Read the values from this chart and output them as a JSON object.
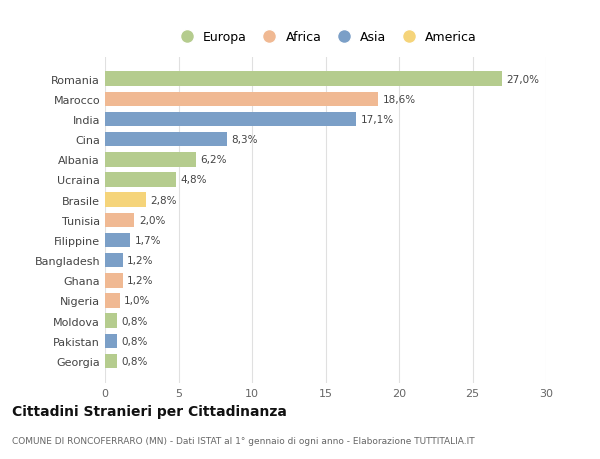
{
  "countries": [
    "Romania",
    "Marocco",
    "India",
    "Cina",
    "Albania",
    "Ucraina",
    "Brasile",
    "Tunisia",
    "Filippine",
    "Bangladesh",
    "Ghana",
    "Nigeria",
    "Moldova",
    "Pakistan",
    "Georgia"
  ],
  "values": [
    27.0,
    18.6,
    17.1,
    8.3,
    6.2,
    4.8,
    2.8,
    2.0,
    1.7,
    1.2,
    1.2,
    1.0,
    0.8,
    0.8,
    0.8
  ],
  "labels": [
    "27,0%",
    "18,6%",
    "17,1%",
    "8,3%",
    "6,2%",
    "4,8%",
    "2,8%",
    "2,0%",
    "1,7%",
    "1,2%",
    "1,2%",
    "1,0%",
    "0,8%",
    "0,8%",
    "0,8%"
  ],
  "continents": [
    "Europa",
    "Africa",
    "Asia",
    "Asia",
    "Europa",
    "Europa",
    "America",
    "Africa",
    "Asia",
    "Asia",
    "Africa",
    "Africa",
    "Europa",
    "Asia",
    "Europa"
  ],
  "colors": {
    "Europa": "#b5cc8e",
    "Africa": "#f0b993",
    "Asia": "#7b9fc7",
    "America": "#f5d47a"
  },
  "legend_order": [
    "Europa",
    "Africa",
    "Asia",
    "America"
  ],
  "title": "Cittadini Stranieri per Cittadinanza",
  "subtitle": "COMUNE DI RONCOFERRARO (MN) - Dati ISTAT al 1° gennaio di ogni anno - Elaborazione TUTTITALIA.IT",
  "xlim": [
    0,
    30
  ],
  "xticks": [
    0,
    5,
    10,
    15,
    20,
    25,
    30
  ],
  "background_color": "#ffffff",
  "grid_color": "#e0e0e0",
  "bar_height": 0.72
}
